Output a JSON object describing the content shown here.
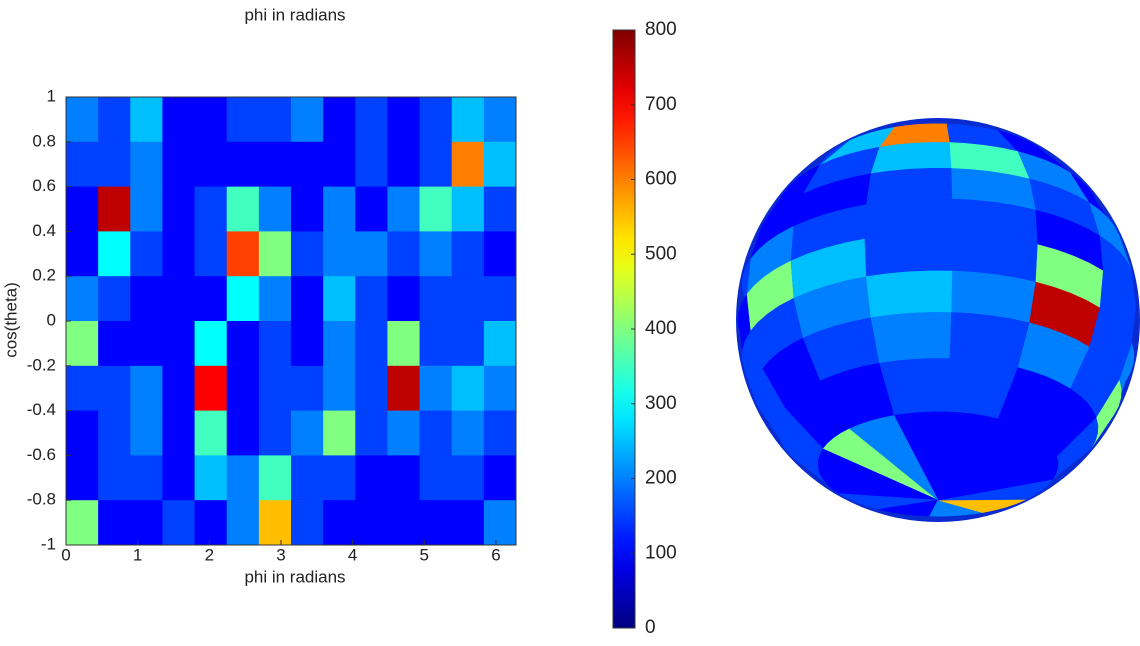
{
  "chart_data": {
    "type": "heatmap",
    "top_label": "phi in radians",
    "xlabel": "phi in radians",
    "ylabel": "cos(theta)",
    "xlim": [
      0,
      6.28
    ],
    "ylim": [
      -1,
      1
    ],
    "xticks": [
      0,
      1,
      2,
      3,
      4,
      5,
      6
    ],
    "yticks": [
      -1,
      -0.8,
      -0.6,
      -0.4,
      -0.2,
      0,
      0.2,
      0.4,
      0.6,
      0.8,
      1
    ],
    "colormap": "jet",
    "clim": [
      0,
      800
    ],
    "cticks": [
      0,
      100,
      200,
      300,
      400,
      500,
      600,
      700,
      800
    ],
    "z": [
      [
        200,
        150,
        250,
        100,
        100,
        150,
        150,
        200,
        100,
        150,
        100,
        150,
        250,
        200
      ],
      [
        150,
        150,
        200,
        100,
        100,
        100,
        100,
        100,
        100,
        150,
        100,
        150,
        600,
        250
      ],
      [
        100,
        750,
        200,
        100,
        150,
        350,
        200,
        100,
        200,
        100,
        200,
        350,
        250,
        150
      ],
      [
        100,
        300,
        150,
        100,
        150,
        650,
        400,
        150,
        200,
        200,
        150,
        200,
        150,
        100
      ],
      [
        200,
        150,
        100,
        100,
        100,
        300,
        200,
        100,
        250,
        150,
        100,
        150,
        150,
        150
      ],
      [
        400,
        100,
        100,
        100,
        300,
        100,
        150,
        100,
        200,
        150,
        400,
        150,
        150,
        250
      ],
      [
        150,
        150,
        200,
        100,
        700,
        100,
        150,
        150,
        200,
        150,
        750,
        200,
        250,
        200
      ],
      [
        100,
        150,
        200,
        100,
        350,
        100,
        150,
        200,
        400,
        150,
        200,
        150,
        200,
        150
      ],
      [
        100,
        150,
        150,
        100,
        250,
        200,
        350,
        150,
        150,
        100,
        100,
        150,
        150,
        100
      ],
      [
        400,
        100,
        100,
        150,
        100,
        200,
        550,
        150,
        100,
        100,
        100,
        100,
        100,
        200
      ]
    ]
  }
}
